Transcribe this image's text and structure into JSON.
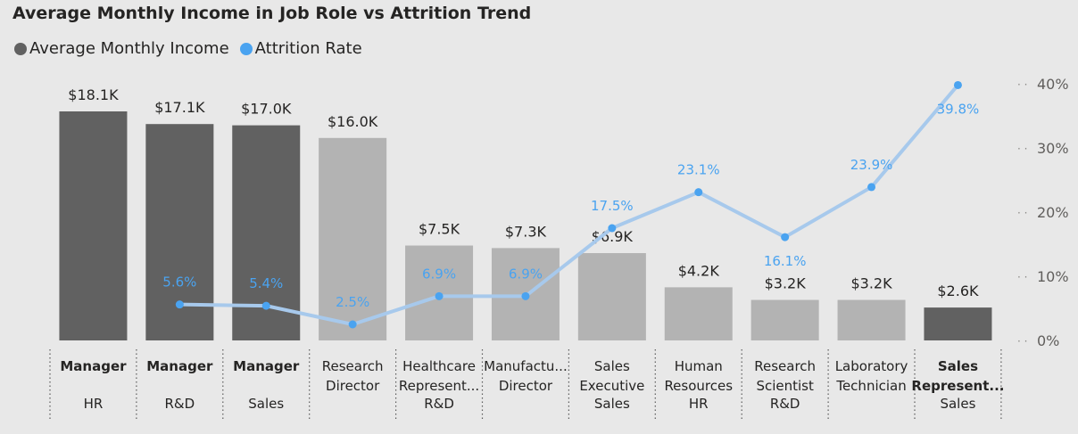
{
  "title": "Average Monthly Income in Job Role vs Attrition Trend",
  "legend": {
    "income_label": "Average Monthly Income",
    "attrition_label": "Attrition Rate"
  },
  "colors": {
    "income_dark": "#616161",
    "income_light": "#b3b3b3",
    "attrition_line": "#a7c9ec",
    "attrition_marker": "#4aa3f0",
    "attrition_label": "#4aa3f0",
    "axis_text": "#605e5c"
  },
  "chart_data": {
    "type": "bar+line",
    "title": "Average Monthly Income in Job Role vs Attrition Trend",
    "grid": false,
    "legend_position": "top-left",
    "categories": [
      {
        "role": "Manager",
        "role_bold": true,
        "department": "HR"
      },
      {
        "role": "Manager",
        "role_bold": true,
        "department": "R&D"
      },
      {
        "role": "Manager",
        "role_bold": true,
        "department": "Sales"
      },
      {
        "role": "Research Director",
        "role_bold": false,
        "department": ""
      },
      {
        "role": "Healthcare Represent...",
        "role_bold": false,
        "department": "R&D"
      },
      {
        "role": "Manufactu... Director",
        "role_bold": false,
        "department": ""
      },
      {
        "role": "Sales Executive",
        "role_bold": false,
        "department": "Sales"
      },
      {
        "role": "Human Resources",
        "role_bold": false,
        "department": "HR"
      },
      {
        "role": "Research Scientist",
        "role_bold": false,
        "department": "R&D"
      },
      {
        "role": "Laboratory Technician",
        "role_bold": false,
        "department": ""
      },
      {
        "role": "Sales Represent...",
        "role_bold": true,
        "department": "Sales"
      }
    ],
    "series": [
      {
        "name": "Average Monthly Income",
        "kind": "bar",
        "values": [
          18.1,
          17.1,
          17.0,
          16.0,
          7.5,
          7.3,
          6.9,
          4.2,
          3.2,
          3.2,
          2.6
        ],
        "labels": [
          "$18.1K",
          "$17.1K",
          "$17.0K",
          "$16.0K",
          "$7.5K",
          "$7.3K",
          "$6.9K",
          "$4.2K",
          "$3.2K",
          "$3.2K",
          "$2.6K"
        ],
        "highlight": [
          true,
          true,
          true,
          false,
          false,
          false,
          false,
          false,
          false,
          false,
          true
        ]
      },
      {
        "name": "Attrition Rate",
        "kind": "line",
        "values": [
          null,
          5.6,
          5.4,
          2.5,
          6.9,
          6.9,
          17.5,
          23.1,
          16.1,
          23.9,
          39.8
        ],
        "labels": [
          "",
          "5.6%",
          "5.4%",
          "2.5%",
          "6.9%",
          "6.9%",
          "17.5%",
          "23.1%",
          "16.1%",
          "23.9%",
          "39.8%"
        ],
        "label_side": [
          "",
          "above",
          "above",
          "above",
          "above",
          "above",
          "above",
          "above",
          "below",
          "above",
          "below"
        ]
      }
    ],
    "y_right": {
      "ticks": [
        "0%",
        "10%",
        "20%",
        "30%",
        "40%"
      ],
      "tick_values": [
        0,
        10,
        20,
        30,
        40
      ],
      "range": [
        0,
        40
      ]
    },
    "y_left_range": [
      0,
      18.1
    ]
  }
}
